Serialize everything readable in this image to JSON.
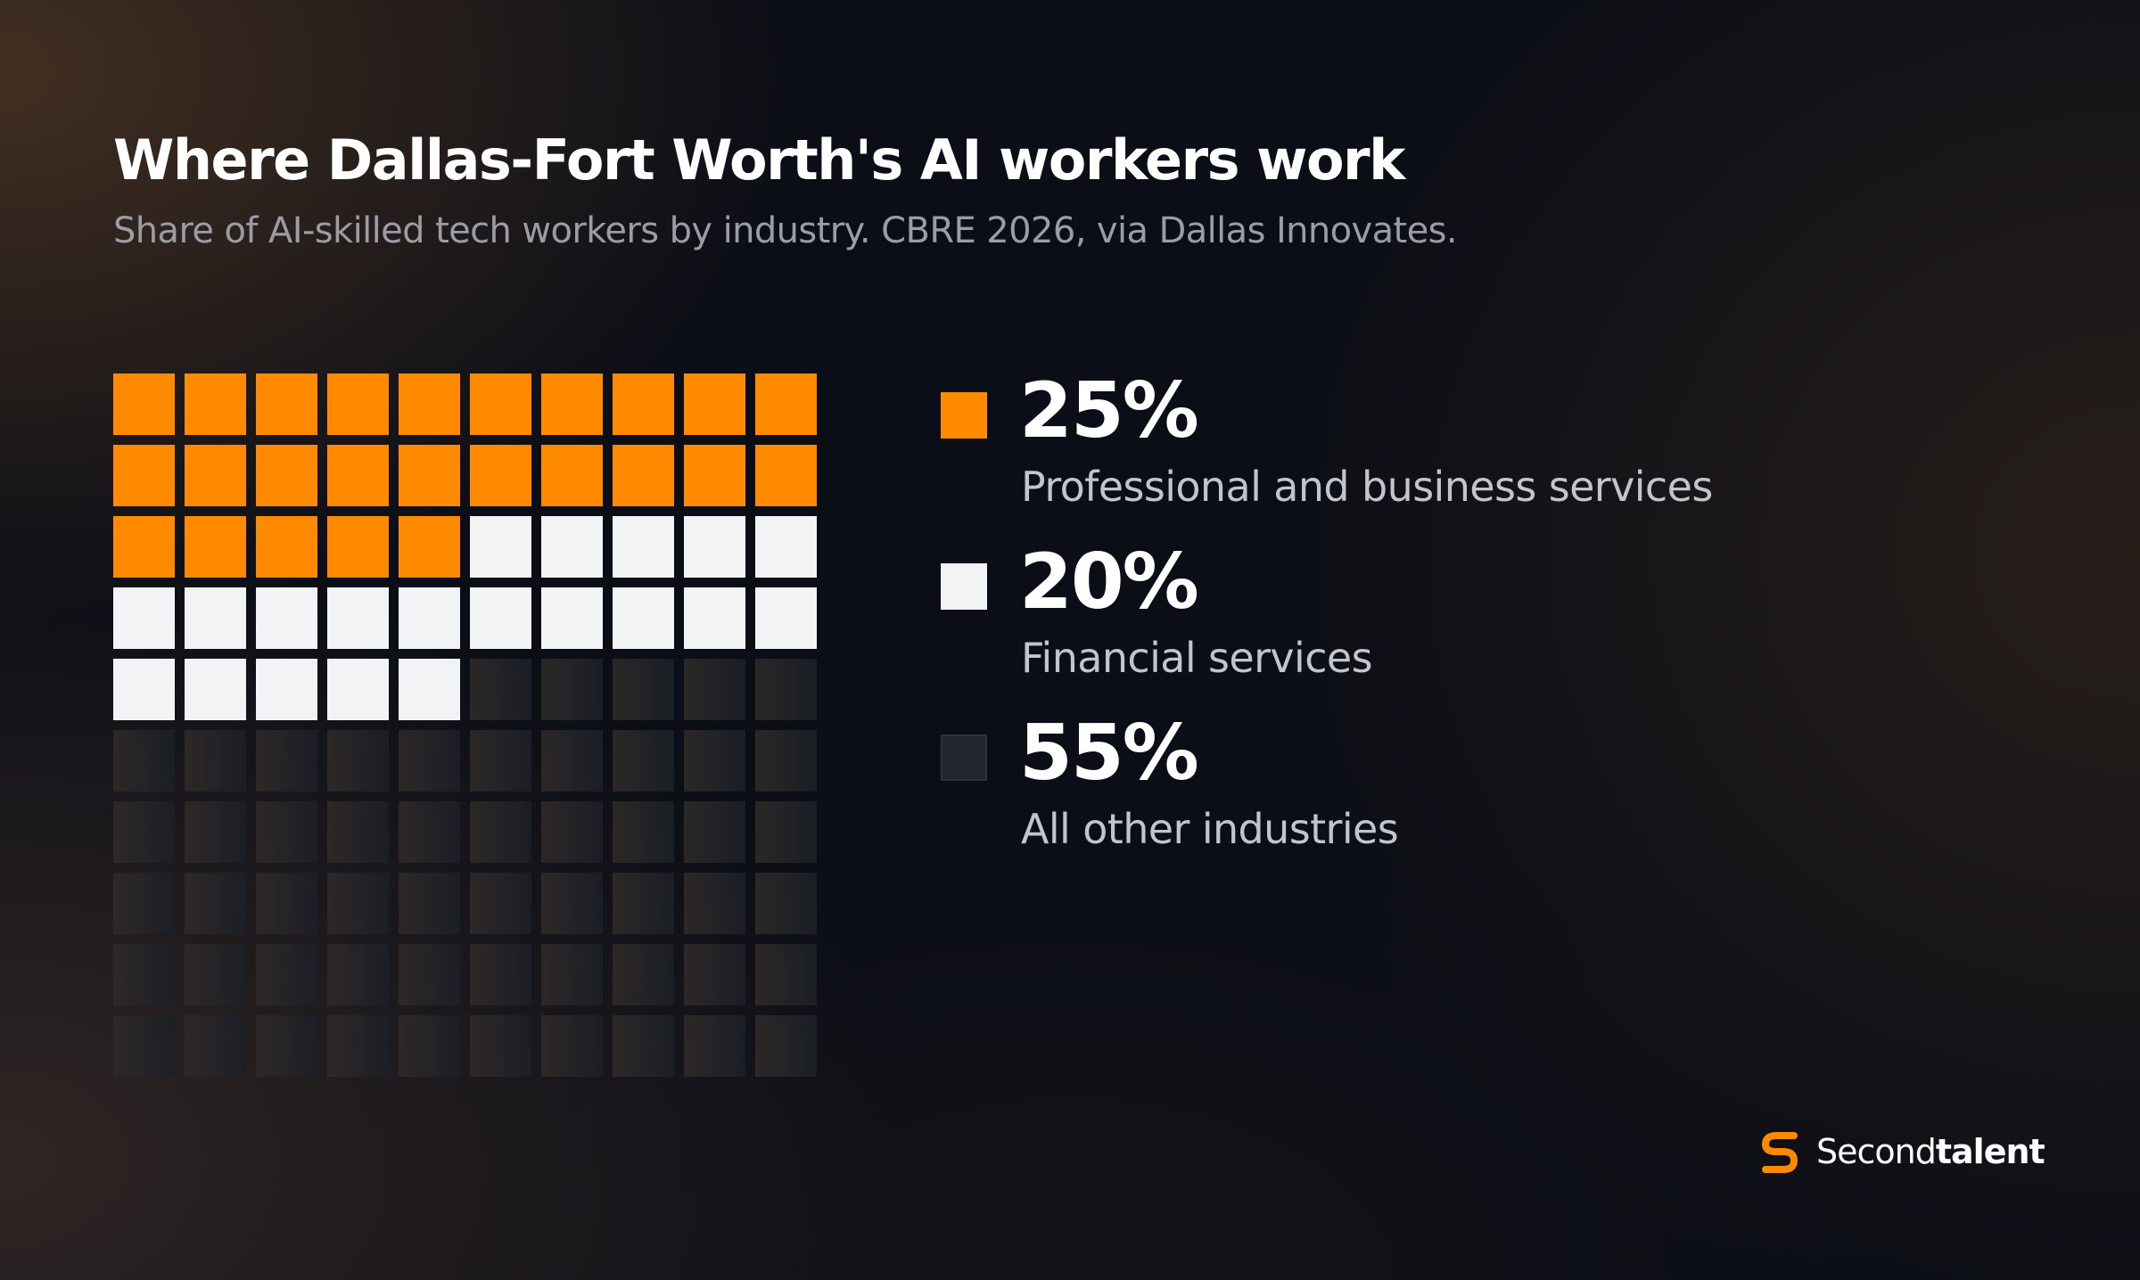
{
  "colors": {
    "background": "#0b0e16",
    "professional": "#ff8a00",
    "financial": "#f2f3f5",
    "other": "#23252c",
    "brand_accent": "#ff8a00"
  },
  "chart_data": {
    "type": "waffle",
    "title": "Where Dallas-Fort Worth's AI workers work",
    "subtitle": "Share of AI-skilled tech workers by industry. CBRE 2026, via Dallas Innovates.",
    "grid": {
      "rows": 10,
      "cols": 10,
      "unit_value_percent": 1
    },
    "series": [
      {
        "name": "Professional and business services",
        "value": 25,
        "label": "25%",
        "color": "#ff8a00"
      },
      {
        "name": "Financial services",
        "value": 20,
        "label": "20%",
        "color": "#f2f3f5"
      },
      {
        "name": "All other industries",
        "value": 55,
        "label": "55%",
        "color": "#23252c"
      }
    ]
  },
  "brand": {
    "name_regular": "Second",
    "name_bold": "talent",
    "icon": "secondtalent-logo-icon"
  }
}
